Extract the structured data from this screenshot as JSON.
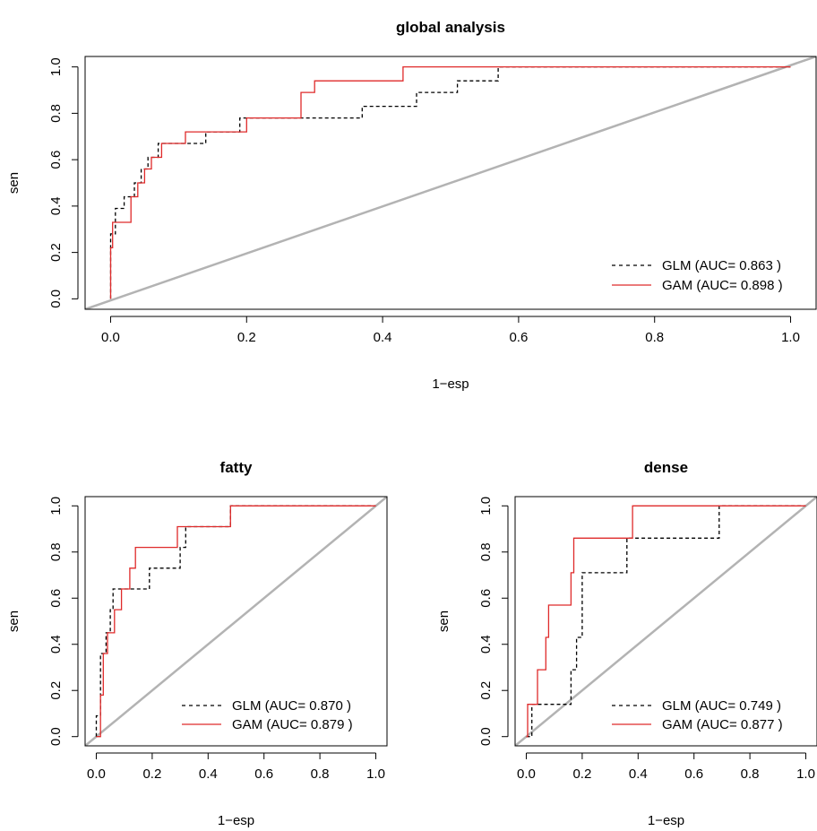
{
  "chart_data": [
    {
      "type": "line",
      "title": "global analysis",
      "xlabel": "1−esp",
      "ylabel": "sen",
      "xlim": [
        0,
        1
      ],
      "ylim": [
        0,
        1
      ],
      "x_ticks": [
        "0.0",
        "0.2",
        "0.4",
        "0.6",
        "0.8",
        "1.0"
      ],
      "y_ticks": [
        "0.0",
        "0.2",
        "0.4",
        "0.6",
        "0.8",
        "1.0"
      ],
      "legend_position": "bottom-right",
      "grid": false,
      "diagonal_color": "#b3b3b3",
      "series": [
        {
          "name": "GLM (AUC= 0.863 )",
          "color": "#000000",
          "dash": "dashed",
          "x": [
            0,
            0,
            0.007,
            0.007,
            0.02,
            0.02,
            0.035,
            0.035,
            0.045,
            0.045,
            0.055,
            0.055,
            0.07,
            0.07,
            0.11,
            0.11,
            0.14,
            0.14,
            0.19,
            0.19,
            0.37,
            0.37,
            0.45,
            0.45,
            0.51,
            0.51,
            0.57,
            0.57,
            1
          ],
          "y": [
            0,
            0.28,
            0.28,
            0.39,
            0.39,
            0.44,
            0.44,
            0.5,
            0.5,
            0.56,
            0.56,
            0.61,
            0.61,
            0.67,
            0.67,
            0.67,
            0.67,
            0.72,
            0.72,
            0.78,
            0.78,
            0.83,
            0.83,
            0.89,
            0.89,
            0.94,
            0.94,
            1,
            1
          ]
        },
        {
          "name": "GAM (AUC= 0.898 )",
          "color": "#df2a2a",
          "dash": "solid",
          "x": [
            0,
            0,
            0.003,
            0.003,
            0.03,
            0.03,
            0.04,
            0.04,
            0.05,
            0.05,
            0.06,
            0.06,
            0.075,
            0.075,
            0.09,
            0.09,
            0.11,
            0.11,
            0.2,
            0.2,
            0.28,
            0.28,
            0.3,
            0.3,
            0.43,
            0.43,
            1
          ],
          "y": [
            0,
            0.22,
            0.22,
            0.33,
            0.33,
            0.44,
            0.44,
            0.5,
            0.5,
            0.56,
            0.56,
            0.61,
            0.61,
            0.67,
            0.67,
            0.67,
            0.67,
            0.72,
            0.72,
            0.78,
            0.78,
            0.89,
            0.89,
            0.94,
            0.94,
            1,
            1
          ]
        }
      ]
    },
    {
      "type": "line",
      "title": "fatty",
      "xlabel": "1−esp",
      "ylabel": "sen",
      "xlim": [
        0,
        1
      ],
      "ylim": [
        0,
        1
      ],
      "x_ticks": [
        "0.0",
        "0.2",
        "0.4",
        "0.6",
        "0.8",
        "1.0"
      ],
      "y_ticks": [
        "0.0",
        "0.2",
        "0.4",
        "0.6",
        "0.8",
        "1.0"
      ],
      "legend_position": "bottom-right",
      "grid": false,
      "diagonal_color": "#b3b3b3",
      "series": [
        {
          "name": "GLM (AUC= 0.870 )",
          "color": "#000000",
          "dash": "dashed",
          "x": [
            0,
            0,
            0.015,
            0.015,
            0.035,
            0.035,
            0.05,
            0.05,
            0.06,
            0.06,
            0.12,
            0.12,
            0.19,
            0.19,
            0.3,
            0.3,
            0.32,
            0.32,
            0.48,
            0.48,
            1
          ],
          "y": [
            0,
            0.09,
            0.09,
            0.36,
            0.36,
            0.45,
            0.45,
            0.55,
            0.55,
            0.64,
            0.64,
            0.64,
            0.64,
            0.73,
            0.73,
            0.82,
            0.82,
            0.91,
            0.91,
            1,
            1
          ]
        },
        {
          "name": "GAM (AUC= 0.879 )",
          "color": "#df2a2a",
          "dash": "solid",
          "x": [
            0,
            0.015,
            0.015,
            0.025,
            0.025,
            0.04,
            0.04,
            0.065,
            0.065,
            0.09,
            0.09,
            0.12,
            0.12,
            0.14,
            0.14,
            0.29,
            0.29,
            0.48,
            0.48,
            1
          ],
          "y": [
            0,
            0,
            0.18,
            0.18,
            0.36,
            0.36,
            0.45,
            0.45,
            0.55,
            0.55,
            0.64,
            0.64,
            0.73,
            0.73,
            0.82,
            0.82,
            0.91,
            0.91,
            1,
            1
          ]
        }
      ]
    },
    {
      "type": "line",
      "title": "dense",
      "xlabel": "1−esp",
      "ylabel": "sen",
      "xlim": [
        0,
        1
      ],
      "ylim": [
        0,
        1
      ],
      "x_ticks": [
        "0.0",
        "0.2",
        "0.4",
        "0.6",
        "0.8",
        "1.0"
      ],
      "y_ticks": [
        "0.0",
        "0.2",
        "0.4",
        "0.6",
        "0.8",
        "1.0"
      ],
      "legend_position": "bottom-right",
      "grid": false,
      "diagonal_color": "#b3b3b3",
      "series": [
        {
          "name": "GLM (AUC= 0.749 )",
          "color": "#000000",
          "dash": "dashed",
          "x": [
            0,
            0.02,
            0.02,
            0.16,
            0.16,
            0.18,
            0.18,
            0.2,
            0.2,
            0.36,
            0.36,
            0.69,
            0.69,
            1
          ],
          "y": [
            0,
            0,
            0.14,
            0.14,
            0.29,
            0.29,
            0.43,
            0.43,
            0.71,
            0.71,
            0.86,
            0.86,
            1,
            1
          ]
        },
        {
          "name": "GAM (AUC= 0.877 )",
          "color": "#df2a2a",
          "dash": "solid",
          "x": [
            0,
            0.005,
            0.005,
            0.04,
            0.04,
            0.07,
            0.07,
            0.08,
            0.08,
            0.16,
            0.16,
            0.17,
            0.17,
            0.38,
            0.38,
            1
          ],
          "y": [
            0,
            0,
            0.14,
            0.14,
            0.29,
            0.29,
            0.43,
            0.43,
            0.57,
            0.57,
            0.71,
            0.71,
            0.86,
            0.86,
            1,
            1
          ]
        }
      ]
    }
  ]
}
